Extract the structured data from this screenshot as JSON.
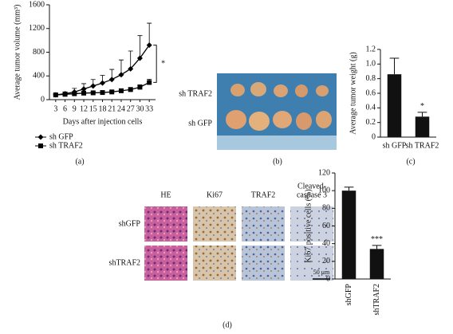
{
  "chart_data": [
    {
      "type": "line",
      "ylabel": "Average tumor volume (mm³)",
      "xlabel": "Days after injection cells",
      "x": [
        3,
        6,
        9,
        12,
        15,
        18,
        21,
        24,
        27,
        30,
        33
      ],
      "xlim": [
        1,
        35
      ],
      "xticks": [
        3,
        6,
        9,
        12,
        15,
        18,
        21,
        24,
        27,
        30,
        33
      ],
      "ylim": [
        0,
        1600
      ],
      "yticks": [
        0,
        400,
        800,
        1200,
        1600
      ],
      "series": [
        {
          "name": "sh GFP",
          "color": "#000000",
          "marker": "diamond",
          "values": [
            80,
            100,
            130,
            180,
            230,
            280,
            340,
            420,
            520,
            700,
            920
          ],
          "errors": [
            15,
            30,
            60,
            90,
            110,
            130,
            170,
            250,
            300,
            380,
            370
          ]
        },
        {
          "name": "sh TRAF2",
          "color": "#000000",
          "marker": "square",
          "values": [
            80,
            90,
            100,
            110,
            115,
            120,
            130,
            150,
            170,
            210,
            290
          ],
          "errors": [
            10,
            12,
            15,
            18,
            20,
            20,
            25,
            30,
            35,
            40,
            55
          ]
        }
      ],
      "annotations": [
        "*"
      ]
    },
    {
      "type": "bar",
      "ylabel": "Average tumor weight (g)",
      "categories": [
        "sh GFP",
        "sh TRAF2"
      ],
      "values": [
        0.86,
        0.28
      ],
      "errors": [
        0.22,
        0.06
      ],
      "color": "#111111",
      "ylim": [
        0,
        1.2
      ],
      "yticks": [
        0,
        0.2,
        0.4,
        0.6,
        0.8,
        {
          "value": 1,
          "label": "1.0"
        },
        1.2
      ],
      "annotations": [
        "*"
      ]
    },
    {
      "type": "bar",
      "ylabel": "Ki67 positive cells (%)",
      "categories": [
        "shGFP",
        "shTRAF2"
      ],
      "values": [
        100,
        34
      ],
      "errors": [
        4,
        4
      ],
      "color": "#111111",
      "ylim": [
        0,
        120
      ],
      "yticks": [
        0,
        20,
        40,
        60,
        80,
        100,
        120
      ],
      "annotations": [
        "***"
      ]
    }
  ],
  "panels": [
    "(a)",
    "(b)",
    "(c)",
    "(d)"
  ],
  "photo": {
    "rows": [
      "sh TRAF2",
      "sh GFP"
    ]
  },
  "histology": {
    "columns": [
      "HE",
      "Ki67",
      "TRAF2",
      "Cleaved-",
      "caspase 3"
    ],
    "rows": [
      "shGFP",
      "shTRAF2"
    ],
    "scale": "50 μm"
  }
}
